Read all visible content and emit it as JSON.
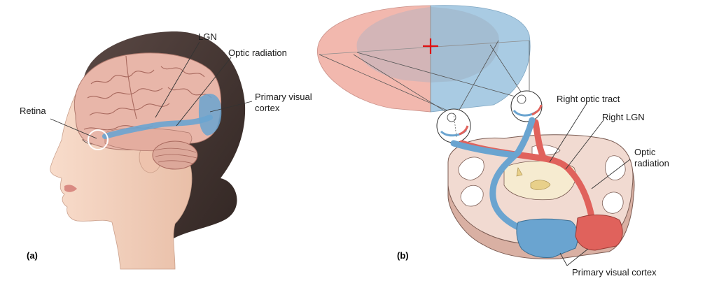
{
  "panel_a": {
    "panel_label": "(a)",
    "labels": {
      "lgn": "LGN",
      "optic_radiation": "Optic radiation",
      "primary_visual_cortex_line1": "Primary visual",
      "primary_visual_cortex_line2": "cortex",
      "retina": "Retina"
    }
  },
  "panel_b": {
    "panel_label": "(b)",
    "labels": {
      "right_optic_tract": "Right optic tract",
      "right_lgn": "Right LGN",
      "optic_radiation_line1": "Optic",
      "optic_radiation_line2": "radiation",
      "primary_visual_cortex": "Primary visual cortex"
    }
  },
  "colors": {
    "left_visual_field": "#f2b8ae",
    "right_visual_field": "#a9cbe3",
    "left_pathway": "#e0625c",
    "right_pathway": "#6aa4d0",
    "brain_tissue": "#efd2c8",
    "hair": "#4a3a36",
    "skin": "#f6d8c6",
    "fixation_cross": "#e01010"
  }
}
